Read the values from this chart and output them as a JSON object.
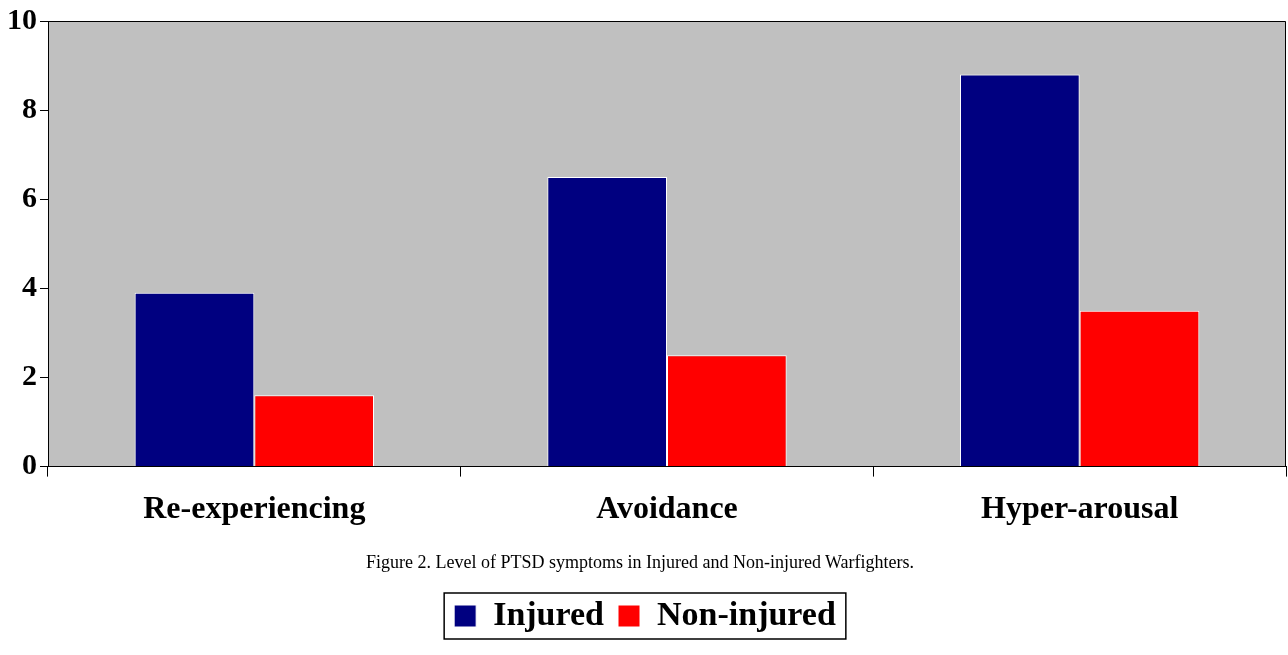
{
  "chart_data": {
    "type": "bar",
    "categories": [
      "Re-experiencing",
      "Avoidance",
      "Hyper-arousal"
    ],
    "series": [
      {
        "name": "Injured",
        "color": "#000080",
        "values": [
          3.9,
          6.5,
          8.8
        ]
      },
      {
        "name": "Non-injured",
        "color": "#ff0000",
        "values": [
          1.6,
          2.5,
          3.5
        ]
      }
    ],
    "ylim": [
      0,
      10
    ],
    "yticks": [
      0,
      2,
      4,
      6,
      8,
      10
    ],
    "grid": false,
    "legend": "bottom",
    "annotations": [
      "Figure 2. Level of PTSD symptoms in Injured and Non-injured Warfighters."
    ]
  }
}
